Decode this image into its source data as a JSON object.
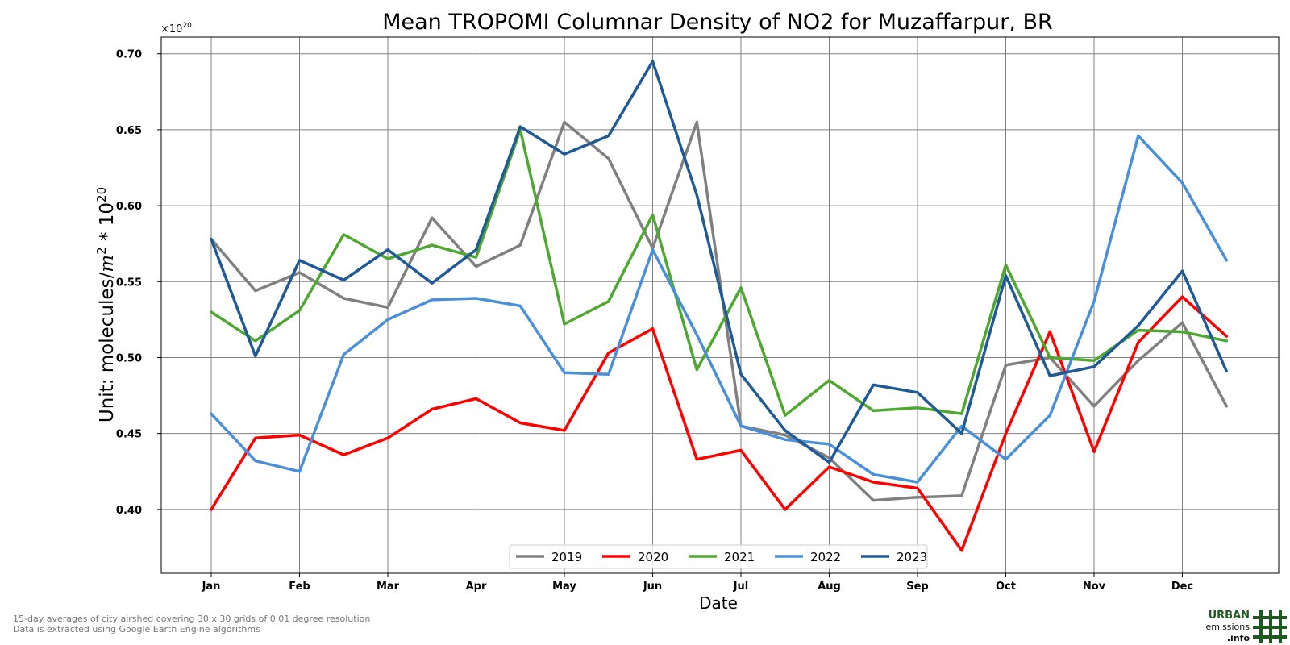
{
  "chart_data": {
    "type": "line",
    "title": "Mean TROPOMI Columnar Density of NO2 for Muzaffarpur, BR",
    "xlabel": "Date",
    "ylabel_prefix": "Unit: molecules/",
    "ylabel_m": "m",
    "ylabel_m_exp": "2",
    "ylabel_mid": " * 10",
    "ylabel_exp": "20",
    "offset_label": "×10",
    "offset_exp": "20",
    "x_tick_labels": [
      "Jan",
      "Feb",
      "Mar",
      "Apr",
      "May",
      "Jun",
      "Jul",
      "Aug",
      "Sep",
      "Oct",
      "Nov",
      "Dec"
    ],
    "y_ticks": [
      0.4,
      0.45,
      0.5,
      0.55,
      0.6,
      0.65,
      0.7
    ],
    "y_tick_labels": [
      "0.40",
      "0.45",
      "0.50",
      "0.55",
      "0.60",
      "0.65",
      "0.70"
    ],
    "ylim": [
      0.358,
      0.711
    ],
    "grid": true,
    "legend_position": "bottom-center",
    "x_period_labels": [
      "Jan 1",
      "Jan 16",
      "Feb 1",
      "Feb 16",
      "Mar 1",
      "Mar 16",
      "Apr 1",
      "Apr 16",
      "May 1",
      "May 16",
      "Jun 1",
      "Jun 16",
      "Jul 1",
      "Jul 16",
      "Aug 1",
      "Aug 16",
      "Sep 1",
      "Sep 16",
      "Oct 1",
      "Oct 16",
      "Nov 1",
      "Nov 16",
      "Dec 1",
      "Dec 16"
    ],
    "series": [
      {
        "name": "2019",
        "color": "#808080",
        "values": [
          0.578,
          0.544,
          0.556,
          0.539,
          0.533,
          0.592,
          0.56,
          0.574,
          0.655,
          0.631,
          0.572,
          0.655,
          0.455,
          0.449,
          0.434,
          0.406,
          0.408,
          0.409,
          0.495,
          0.5,
          0.468,
          0.498,
          0.523,
          0.468
        ]
      },
      {
        "name": "2020",
        "color": "#ff0000",
        "values": [
          0.4,
          0.447,
          0.449,
          0.436,
          0.447,
          0.466,
          0.473,
          0.457,
          0.452,
          0.503,
          0.519,
          0.433,
          0.439,
          0.4,
          0.428,
          0.418,
          0.414,
          0.373,
          0.45,
          0.517,
          0.438,
          0.51,
          0.54,
          0.514
        ]
      },
      {
        "name": "2021",
        "color": "#4ea72e",
        "values": [
          0.53,
          0.511,
          0.531,
          0.581,
          0.565,
          0.574,
          0.566,
          0.65,
          0.522,
          0.537,
          0.594,
          0.492,
          0.546,
          0.462,
          0.485,
          0.465,
          0.467,
          0.463,
          0.561,
          0.5,
          0.498,
          0.518,
          0.517,
          0.511
        ]
      },
      {
        "name": "2022",
        "color": "#4a90d9",
        "values": [
          0.463,
          0.432,
          0.425,
          0.502,
          0.525,
          0.538,
          0.539,
          0.534,
          0.49,
          0.489,
          0.571,
          0.515,
          0.455,
          0.446,
          0.443,
          0.423,
          0.418,
          0.455,
          0.433,
          0.462,
          0.537,
          0.646,
          0.615,
          0.564
        ]
      },
      {
        "name": "2023",
        "color": "#1f5a96",
        "values": [
          0.578,
          0.501,
          0.564,
          0.551,
          0.571,
          0.549,
          0.571,
          0.652,
          0.634,
          0.646,
          0.695,
          0.607,
          0.489,
          0.452,
          0.431,
          0.482,
          0.477,
          0.45,
          0.554,
          0.488,
          0.494,
          0.521,
          0.557,
          0.491
        ]
      }
    ]
  },
  "footnotes": [
    "15-day averages of city airshed covering 30 x 30 grids of 0.01 degree resolution",
    "Data is extracted using Google Earth Engine algorithms"
  ],
  "logo": {
    "line1": "URBAN",
    "line2": "emissions",
    "line3": ".info",
    "color": "#1e5a1e"
  }
}
